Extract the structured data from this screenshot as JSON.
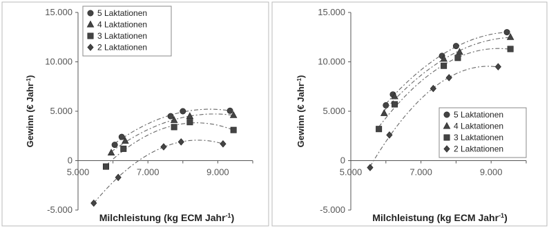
{
  "chart_data": [
    {
      "type": "scatter",
      "title": "",
      "xlabel": "Milchleistung (kg ECM Jahr",
      "xlabel_sup": "-1",
      "xlabel_close": ")",
      "ylabel": "Gewinn (€ Jahr",
      "ylabel_sup": "-1",
      "ylabel_close": ")",
      "xlim": [
        5000,
        10000
      ],
      "ylim": [
        -5000,
        15000
      ],
      "xticks": [
        {
          "value": 5000,
          "label": "5.000"
        },
        {
          "value": 7000,
          "label": "7.000"
        },
        {
          "value": 9000,
          "label": "9.000"
        }
      ],
      "yticks": [
        {
          "value": -5000,
          "label": "-5.000"
        },
        {
          "value": 0,
          "label": "0"
        },
        {
          "value": 5000,
          "label": "5.000"
        },
        {
          "value": 10000,
          "label": "10.000"
        },
        {
          "value": 15000,
          "label": "15.000"
        }
      ],
      "legend_position": "top-left",
      "grid": false,
      "series": [
        {
          "name": "5 Laktationen",
          "marker": "circle",
          "x": [
            6050,
            6250,
            7650,
            8000,
            9350
          ],
          "y": [
            1600,
            2400,
            4500,
            5000,
            5050
          ]
        },
        {
          "name": "4 Laktationen",
          "marker": "triangle",
          "x": [
            5950,
            6350,
            7750,
            8200,
            9450
          ],
          "y": [
            800,
            2000,
            4100,
            4500,
            4600
          ]
        },
        {
          "name": "3 Laktationen",
          "marker": "square",
          "x": [
            5800,
            6300,
            7750,
            8200,
            9450
          ],
          "y": [
            -600,
            1200,
            3400,
            3900,
            3100
          ]
        },
        {
          "name": "2 Laktationen",
          "marker": "diamond",
          "x": [
            5450,
            6150,
            7450,
            7950,
            9150
          ],
          "y": [
            -4300,
            -1700,
            1400,
            1900,
            1700
          ]
        }
      ]
    },
    {
      "type": "scatter",
      "title": "",
      "xlabel": "Milchleistung (kg ECM Jahr",
      "xlabel_sup": "-1",
      "xlabel_close": ")",
      "ylabel": "Gewinn (€ Jahr",
      "ylabel_sup": "-1",
      "ylabel_close": ")",
      "xlim": [
        5000,
        10000
      ],
      "ylim": [
        -5000,
        15000
      ],
      "xticks": [
        {
          "value": 5000,
          "label": "5.000"
        },
        {
          "value": 7000,
          "label": "7.000"
        },
        {
          "value": 9000,
          "label": "9.000"
        }
      ],
      "yticks": [
        {
          "value": -5000,
          "label": "-5.000"
        },
        {
          "value": 0,
          "label": "0"
        },
        {
          "value": 5000,
          "label": "5.000"
        },
        {
          "value": 10000,
          "label": "10.000"
        },
        {
          "value": 15000,
          "label": "15.000"
        }
      ],
      "legend_position": "bottom-right",
      "grid": false,
      "series": [
        {
          "name": "5 Laktationen",
          "marker": "circle",
          "x": [
            6000,
            6200,
            7600,
            8000,
            9450
          ],
          "y": [
            5600,
            6700,
            10600,
            11600,
            13000
          ]
        },
        {
          "name": "4 Laktationen",
          "marker": "triangle",
          "x": [
            5950,
            6250,
            7650,
            8100,
            9550
          ],
          "y": [
            4800,
            6500,
            10300,
            11000,
            12500
          ]
        },
        {
          "name": "3 Laktationen",
          "marker": "square",
          "x": [
            5800,
            6250,
            7650,
            8050,
            9550
          ],
          "y": [
            3200,
            5700,
            9600,
            10400,
            11300
          ]
        },
        {
          "name": "2 Laktationen",
          "marker": "diamond",
          "x": [
            5550,
            6100,
            7350,
            7800,
            9200
          ],
          "y": [
            -700,
            2600,
            7300,
            8400,
            9500
          ]
        }
      ]
    }
  ]
}
